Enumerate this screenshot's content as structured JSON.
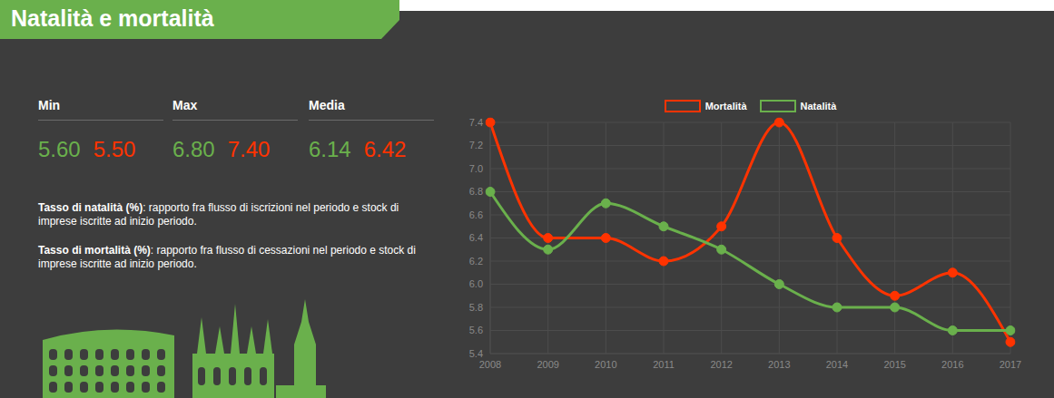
{
  "header": {
    "title": "Natalità e mortalità"
  },
  "summary": [
    {
      "label": "Min",
      "values": [
        {
          "series": "Natalità",
          "text": "5.60"
        },
        {
          "series": "Mortalità",
          "text": "5.50"
        }
      ]
    },
    {
      "label": "Max",
      "values": [
        {
          "series": "Natalità",
          "text": "6.80"
        },
        {
          "series": "Mortalità",
          "text": "7.40"
        }
      ]
    },
    {
      "label": "Media",
      "values": [
        {
          "series": "Natalità",
          "text": "6.14"
        },
        {
          "series": "Mortalità",
          "text": "6.42"
        }
      ]
    }
  ],
  "definitions": [
    {
      "term": "Tasso di natalità (%)",
      "text": ": rapporto fra flusso di iscrizioni nel periodo e stock di imprese iscritte ad inizio periodo."
    },
    {
      "term": "Tasso di mortalità (%)",
      "text": ": rapporto fra flusso di cessazioni nel periodo e stock di imprese iscritte ad inizio periodo."
    }
  ],
  "chart_data": {
    "type": "line",
    "categories": [
      "2008",
      "2009",
      "2010",
      "2011",
      "2012",
      "2013",
      "2014",
      "2015",
      "2016",
      "2017"
    ],
    "series": [
      {
        "name": "Mortalità",
        "color": "#ff3300",
        "values": [
          7.4,
          6.4,
          6.4,
          6.2,
          6.5,
          7.4,
          6.4,
          5.9,
          6.1,
          5.5
        ]
      },
      {
        "name": "Natalità",
        "color": "#6ab04c",
        "values": [
          6.8,
          6.3,
          6.7,
          6.5,
          6.3,
          6.0,
          5.8,
          5.8,
          5.6,
          5.6
        ]
      }
    ],
    "ylim": [
      5.4,
      7.4
    ],
    "yticks": [
      5.4,
      5.6,
      5.8,
      {
        "value": 6,
        "label": "6.0"
      },
      6.2,
      6.4,
      6.6,
      6.8,
      {
        "value": 7,
        "label": "7.0"
      },
      7.2,
      7.4
    ],
    "grid": true,
    "legend": "top",
    "marker": "circle",
    "line_style": "smooth"
  }
}
